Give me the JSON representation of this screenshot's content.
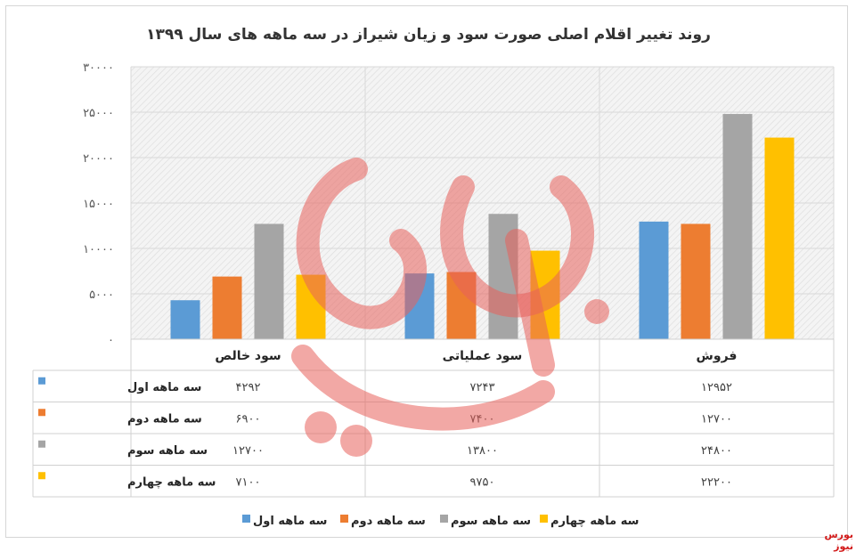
{
  "chart_data": {
    "type": "bar",
    "title": "روند تغییر اقلام اصلی صورت سود و زیان شیراز در سه ماهه های سال ۱۳۹۹",
    "categories": [
      "فروش",
      "سود عملیاتی",
      "سود خالص"
    ],
    "series": [
      {
        "name": "سه ماهه اول",
        "color": "#5b9bd5",
        "values": [
          12952,
          7243,
          4292
        ],
        "labels": [
          "۱۲۹۵۲",
          "۷۲۴۳",
          "۴۲۹۲"
        ]
      },
      {
        "name": "سه ماهه دوم",
        "color": "#ed7d31",
        "values": [
          12700,
          7400,
          6900
        ],
        "labels": [
          "۱۲۷۰۰",
          "۷۴۰۰",
          "۶۹۰۰"
        ]
      },
      {
        "name": "سه ماهه سوم",
        "color": "#a5a5a5",
        "values": [
          24800,
          13800,
          12700
        ],
        "labels": [
          "۲۴۸۰۰",
          "۱۳۸۰۰",
          "۱۲۷۰۰"
        ]
      },
      {
        "name": "سه ماهه چهارم",
        "color": "#ffc000",
        "values": [
          22200,
          9750,
          7100
        ],
        "labels": [
          "۲۲۲۰۰",
          "۹۷۵۰",
          "۷۱۰۰"
        ]
      }
    ],
    "ylim": [
      0,
      30000
    ],
    "yticks": [
      0,
      5000,
      10000,
      15000,
      20000,
      25000,
      30000
    ],
    "ytick_labels": [
      "۰",
      "۵۰۰۰",
      "۱۰۰۰۰",
      "۱۵۰۰۰",
      "۲۰۰۰۰",
      "۲۵۰۰۰",
      "۳۰۰۰۰"
    ],
    "grid": true,
    "legend": "bottom",
    "data_table": true
  },
  "watermark": "بورس نیوز"
}
